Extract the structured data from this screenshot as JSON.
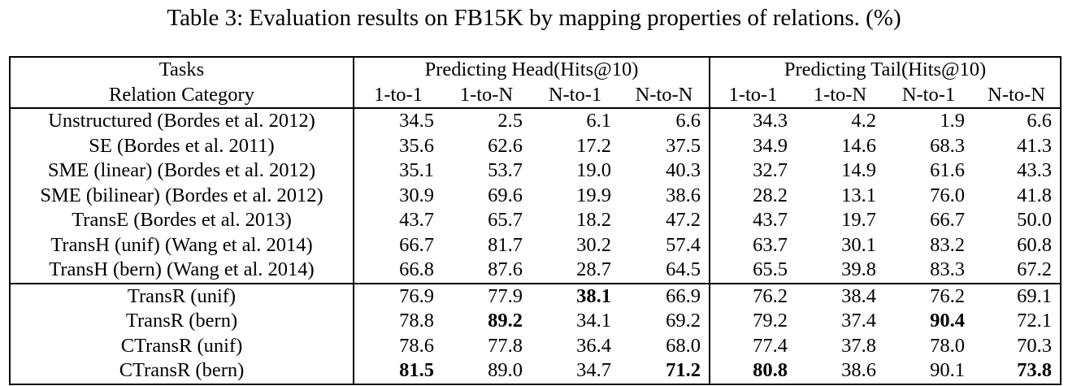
{
  "caption": "Table 3: Evaluation results on FB15K by mapping properties of relations. (%)",
  "header": {
    "tasks": "Tasks",
    "relation_category": "Relation Category",
    "head_group": "Predicting Head(Hits@10)",
    "tail_group": "Predicting Tail(Hits@10)",
    "columns": [
      "1-to-1",
      "1-to-N",
      "N-to-1",
      "N-to-N",
      "1-to-1",
      "1-to-N",
      "N-to-1",
      "N-to-N"
    ]
  },
  "rows": [
    {
      "name": "Unstructured (Bordes et al. 2012)",
      "values": [
        "34.5",
        "2.5",
        "6.1",
        "6.6",
        "34.3",
        "4.2",
        "1.9",
        "6.6"
      ],
      "bold": []
    },
    {
      "name": "SE (Bordes et al. 2011)",
      "values": [
        "35.6",
        "62.6",
        "17.2",
        "37.5",
        "34.9",
        "14.6",
        "68.3",
        "41.3"
      ],
      "bold": []
    },
    {
      "name": "SME (linear) (Bordes et al. 2012)",
      "values": [
        "35.1",
        "53.7",
        "19.0",
        "40.3",
        "32.7",
        "14.9",
        "61.6",
        "43.3"
      ],
      "bold": []
    },
    {
      "name": "SME (bilinear) (Bordes et al. 2012)",
      "values": [
        "30.9",
        "69.6",
        "19.9",
        "38.6",
        "28.2",
        "13.1",
        "76.0",
        "41.8"
      ],
      "bold": []
    },
    {
      "name": "TransE (Bordes et al. 2013)",
      "values": [
        "43.7",
        "65.7",
        "18.2",
        "47.2",
        "43.7",
        "19.7",
        "66.7",
        "50.0"
      ],
      "bold": []
    },
    {
      "name": "TransH (unif) (Wang et al. 2014)",
      "values": [
        "66.7",
        "81.7",
        "30.2",
        "57.4",
        "63.7",
        "30.1",
        "83.2",
        "60.8"
      ],
      "bold": []
    },
    {
      "name": "TransH (bern) (Wang et al. 2014)",
      "values": [
        "66.8",
        "87.6",
        "28.7",
        "64.5",
        "65.5",
        "39.8",
        "83.3",
        "67.2"
      ],
      "bold": []
    },
    {
      "name": "TransR (unif)",
      "values": [
        "76.9",
        "77.9",
        "38.1",
        "66.9",
        "76.2",
        "38.4",
        "76.2",
        "69.1"
      ],
      "bold": [
        2
      ]
    },
    {
      "name": "TransR (bern)",
      "values": [
        "78.8",
        "89.2",
        "34.1",
        "69.2",
        "79.2",
        "37.4",
        "90.4",
        "72.1"
      ],
      "bold": [
        1,
        6
      ]
    },
    {
      "name": "CTransR (unif)",
      "values": [
        "78.6",
        "77.8",
        "36.4",
        "68.0",
        "77.4",
        "37.8",
        "78.0",
        "70.3"
      ],
      "bold": []
    },
    {
      "name": "CTransR (bern)",
      "values": [
        "81.5",
        "89.0",
        "34.7",
        "71.2",
        "80.8",
        "38.6",
        "90.1",
        "73.8"
      ],
      "bold": [
        0,
        3,
        4,
        7
      ]
    }
  ]
}
